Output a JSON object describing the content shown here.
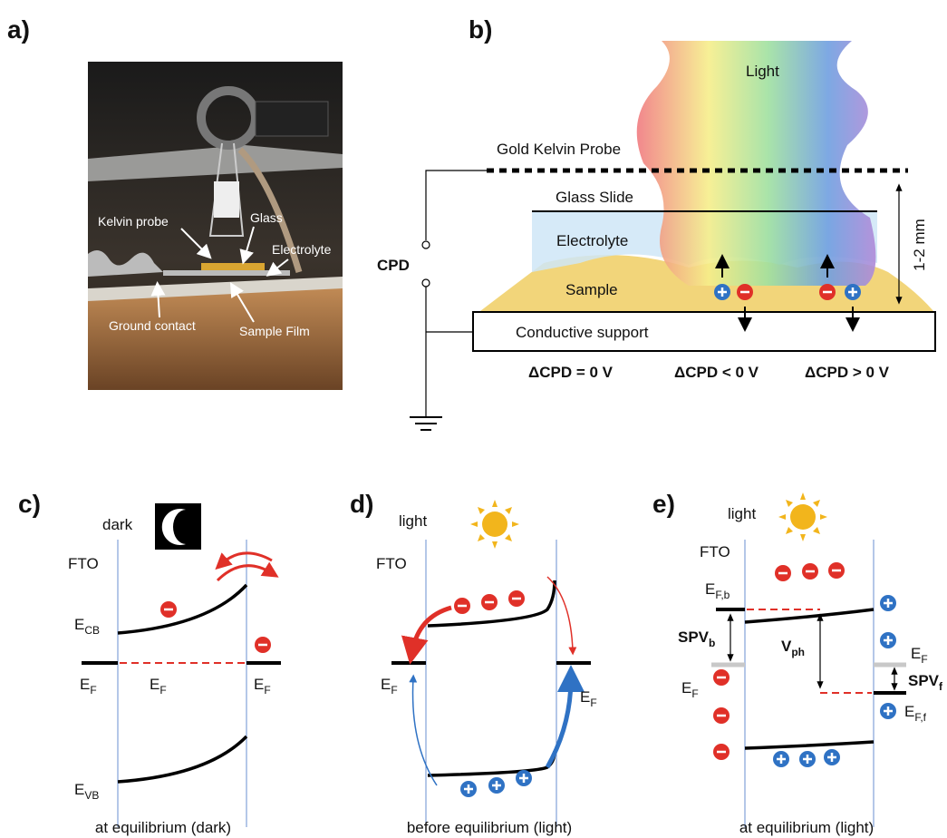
{
  "panels": {
    "a": {
      "label": "a)",
      "annotations": [
        "Kelvin probe",
        "Glass",
        "Electrolyte",
        "Ground contact",
        "Sample Film"
      ]
    },
    "b": {
      "label": "b)",
      "light": "Light",
      "probe": "Gold Kelvin Probe",
      "glass": "Glass Slide",
      "electrolyte": "Electrolyte",
      "sample": "Sample",
      "support": "Conductive support",
      "cpd": "CPD",
      "gap": "1-2 mm",
      "cases": [
        "ΔCPD = 0 V",
        "ΔCPD < 0 V",
        "ΔCPD > 0 V"
      ]
    },
    "c": {
      "label": "c)",
      "condition": "dark",
      "electrode": "FTO",
      "levels": [
        {
          "symbol": "E",
          "subscript": "CB"
        },
        {
          "symbol": "E",
          "subscript": "F"
        },
        {
          "symbol": "E",
          "subscript": "F"
        },
        {
          "symbol": "E",
          "subscript": "F"
        },
        {
          "symbol": "E",
          "subscript": "VB"
        }
      ],
      "caption": "at equilibrium (dark)"
    },
    "d": {
      "label": "d)",
      "condition": "light",
      "electrode": "FTO",
      "levels": [
        {
          "symbol": "E",
          "subscript": "F"
        },
        {
          "symbol": "E",
          "subscript": "F"
        }
      ],
      "caption": "before equilibrium (light)"
    },
    "e": {
      "label": "e)",
      "condition": "light",
      "electrode": "FTO",
      "levels": [
        {
          "symbol": "E",
          "subscript": "F,b"
        },
        {
          "symbol": "SPV",
          "subscript": "b"
        },
        {
          "symbol": "E",
          "subscript": "F"
        },
        {
          "symbol": "V",
          "subscript": "ph"
        },
        {
          "symbol": "E",
          "subscript": "F"
        },
        {
          "symbol": "SPV",
          "subscript": "f"
        },
        {
          "symbol": "E",
          "subscript": "F,f"
        }
      ],
      "caption": "at equilibrium (light)"
    }
  }
}
